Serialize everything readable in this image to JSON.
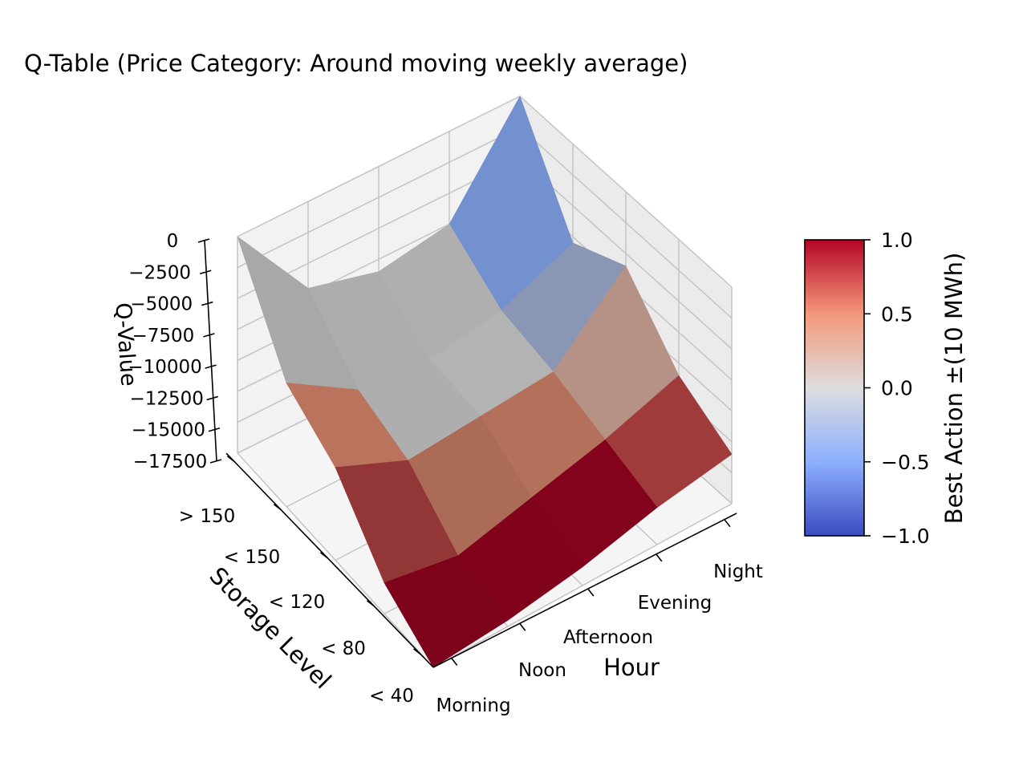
{
  "chart_data": {
    "type": "surface3d",
    "title": "Q-Table (Price Category: Around moving weekly average)",
    "xlabel": "Hour",
    "ylabel": "Storage Level",
    "zlabel": "Q-Value",
    "x_categories": [
      "Morning",
      "Noon",
      "Afternoon",
      "Evening",
      "Night"
    ],
    "y_categories": [
      "< 40",
      "< 80",
      "< 120",
      "< 150",
      "> 150"
    ],
    "z_ticks": [
      0,
      -2500,
      -5000,
      -7500,
      -10000,
      -12500,
      -15000,
      -17500
    ],
    "z_tick_labels": [
      "0",
      "−2500",
      "−5000",
      "−7500",
      "−10000",
      "−12500",
      "−15000",
      "−17500"
    ],
    "zlim": [
      -17500,
      0
    ],
    "grid": true,
    "colorbar": {
      "label": "Best Action ±(10 MWh)",
      "range": [
        -1.0,
        1.0
      ],
      "ticks": [
        1.0,
        0.5,
        0.0,
        -0.5,
        -1.0
      ],
      "tick_labels": [
        "1.0",
        "0.5",
        "0.0",
        "−0.5",
        "−1.0"
      ],
      "colormap": "coolwarm"
    },
    "surface_note": "Q-values estimated from the rendered surface; rows follow storage level (< 40 first), columns follow hour (Morning first).",
    "q_values": [
      [
        -17500,
        -17000,
        -16000,
        -14500,
        -13500
      ],
      [
        -15000,
        -16000,
        -14500,
        -13000,
        -11000
      ],
      [
        -10000,
        -12500,
        -12000,
        -11500,
        -6000
      ],
      [
        -7500,
        -11000,
        -11500,
        -10500,
        -8000
      ],
      [
        0,
        -7000,
        -8500,
        -7500,
        0
      ]
    ],
    "best_action": [
      [
        1,
        1,
        1,
        1,
        1
      ],
      [
        1,
        1,
        1,
        1,
        0
      ],
      [
        1,
        0,
        0,
        0,
        0
      ],
      [
        1,
        0,
        0,
        0,
        -1
      ],
      [
        -1,
        0,
        0,
        0,
        -1
      ]
    ]
  }
}
